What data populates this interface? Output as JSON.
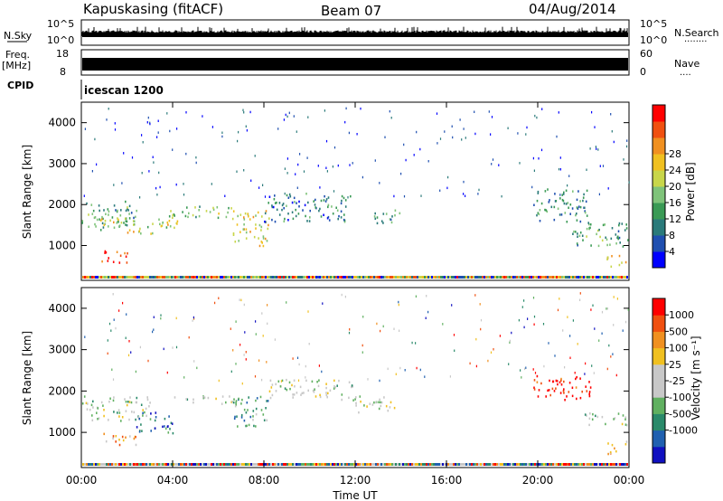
{
  "header": {
    "station": "Kapuskasing (fitACF)",
    "beam": "Beam 07",
    "date": "04/Aug/2014"
  },
  "status_panels": {
    "nsky_label": "N.Sky",
    "nsky_ticks": [
      "10^5",
      "10^0"
    ],
    "nsearch_label": "N.Search",
    "nsearch_ticks": [
      "10^5",
      "10^0"
    ],
    "freq_label": "Freq.",
    "freq_unit": "[MHz]",
    "freq_ticks": [
      "18",
      "8"
    ],
    "nave_label": "Nave",
    "nave_ticks": [
      "60",
      "0"
    ],
    "cpid_label": "CPID",
    "cpid_value": "icescan 1200"
  },
  "chart_data": [
    {
      "type": "heatmap",
      "name": "power",
      "ylabel": "Slant Range [km]",
      "yticks": [
        "1000",
        "2000",
        "3000",
        "4000"
      ],
      "ylim": [
        150,
        4500
      ],
      "xlim": [
        0,
        24
      ],
      "colorbar": {
        "label": "Power [dB]",
        "ticks": [
          "4",
          "8",
          "12",
          "16",
          "20",
          "24",
          "28"
        ],
        "colors": [
          "#0000ff",
          "#1f4fb0",
          "#2a7a7a",
          "#3a9a55",
          "#7fc37a",
          "#c8d64a",
          "#f0c020",
          "#f09020",
          "#f05010",
          "#ff0000"
        ]
      },
      "echo_regions": [
        {
          "t0": 0.0,
          "t1": 2.4,
          "r0": 1400,
          "r1": 2100,
          "level": 0.35
        },
        {
          "t0": 0.5,
          "t1": 2.0,
          "r0": 1500,
          "r1": 1800,
          "level": 0.55
        },
        {
          "t0": 0.6,
          "t1": 2.0,
          "r0": 600,
          "r1": 900,
          "level": 0.85
        },
        {
          "t0": 2.0,
          "t1": 4.2,
          "r0": 1300,
          "r1": 1700,
          "level": 0.55
        },
        {
          "t0": 3.8,
          "t1": 6.6,
          "r0": 1700,
          "r1": 2000,
          "level": 0.45
        },
        {
          "t0": 6.6,
          "t1": 8.2,
          "r0": 1000,
          "r1": 1900,
          "level": 0.6
        },
        {
          "t0": 8.0,
          "t1": 11.8,
          "r0": 1600,
          "r1": 2300,
          "level": 0.25
        },
        {
          "t0": 12.8,
          "t1": 14.0,
          "r0": 1500,
          "r1": 1900,
          "level": 0.35
        },
        {
          "t0": 19.8,
          "t1": 22.2,
          "r0": 1600,
          "r1": 2400,
          "level": 0.3
        },
        {
          "t0": 21.5,
          "t1": 24.0,
          "r0": 1000,
          "r1": 1600,
          "level": 0.35
        },
        {
          "t0": 23.0,
          "t1": 24.0,
          "r0": 500,
          "r1": 800,
          "level": 0.7
        }
      ]
    },
    {
      "type": "heatmap",
      "name": "velocity",
      "xlabel": "Time UT",
      "ylabel": "Slant Range [km]",
      "yticks": [
        "1000",
        "2000",
        "3000",
        "4000"
      ],
      "xticks": [
        "00:00",
        "04:00",
        "08:00",
        "12:00",
        "16:00",
        "20:00",
        "00:00"
      ],
      "ylim": [
        150,
        4500
      ],
      "xlim": [
        0,
        24
      ],
      "colorbar": {
        "label": "Velocity [m s⁻¹]",
        "ticks": [
          "1000",
          "500",
          "100",
          "25",
          "-25",
          "-100",
          "-500",
          "-1000"
        ],
        "colors": [
          "#1010c0",
          "#2060b0",
          "#2a8a6a",
          "#60b060",
          "#c8c8c8",
          "#c8c8c8",
          "#f0c020",
          "#f09020",
          "#f05010",
          "#ff0000"
        ]
      },
      "echo_regions": [
        {
          "t0": 0.0,
          "t1": 3.0,
          "r0": 1300,
          "r1": 1900,
          "level": 0.45
        },
        {
          "t0": 0.8,
          "t1": 2.4,
          "r0": 700,
          "r1": 1000,
          "level": 0.7
        },
        {
          "t0": 2.4,
          "t1": 4.0,
          "r0": 1000,
          "r1": 1500,
          "level": 0.15
        },
        {
          "t0": 4.0,
          "t1": 6.6,
          "r0": 1700,
          "r1": 1900,
          "level": 0.45
        },
        {
          "t0": 6.6,
          "t1": 8.2,
          "r0": 1100,
          "r1": 1900,
          "level": 0.25
        },
        {
          "t0": 8.2,
          "t1": 12.0,
          "r0": 1800,
          "r1": 2300,
          "level": 0.45
        },
        {
          "t0": 12.0,
          "t1": 13.8,
          "r0": 1500,
          "r1": 1900,
          "level": 0.5
        },
        {
          "t0": 19.8,
          "t1": 22.3,
          "r0": 1800,
          "r1": 2400,
          "level": 0.95
        },
        {
          "t0": 22.0,
          "t1": 24.0,
          "r0": 1200,
          "r1": 1500,
          "level": 0.45
        },
        {
          "t0": 23.0,
          "t1": 24.0,
          "r0": 500,
          "r1": 800,
          "level": 0.7
        }
      ]
    }
  ]
}
